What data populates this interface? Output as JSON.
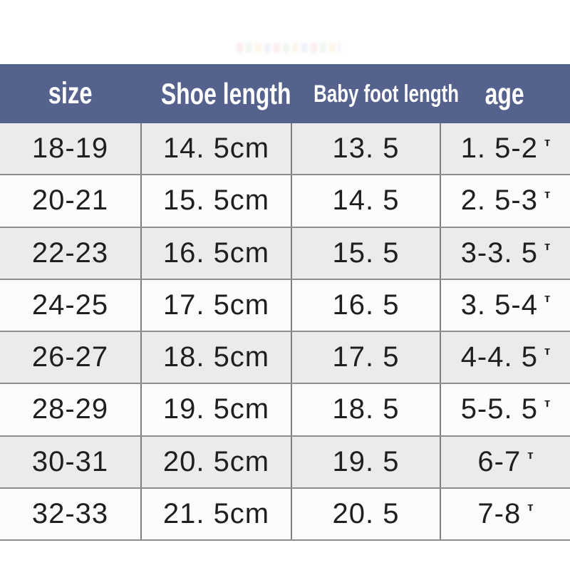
{
  "chart_data": {
    "type": "table",
    "title": "",
    "columns": [
      "size",
      "Shoe length",
      "Baby foot length",
      "age"
    ],
    "rows": [
      {
        "size": "18-19",
        "shoe_length": "14. 5cm",
        "foot_length": "13. 5",
        "age": "1. 5-2",
        "age_unit": "т"
      },
      {
        "size": "20-21",
        "shoe_length": "15. 5cm",
        "foot_length": "14. 5",
        "age": "2. 5-3",
        "age_unit": "т"
      },
      {
        "size": "22-23",
        "shoe_length": "16. 5cm",
        "foot_length": "15. 5",
        "age": "3-3. 5",
        "age_unit": "т"
      },
      {
        "size": "24-25",
        "shoe_length": "17. 5cm",
        "foot_length": "16. 5",
        "age": "3. 5-4",
        "age_unit": "т"
      },
      {
        "size": "26-27",
        "shoe_length": "18. 5cm",
        "foot_length": "17. 5",
        "age": "4-4. 5",
        "age_unit": "т"
      },
      {
        "size": "28-29",
        "shoe_length": "19. 5cm",
        "foot_length": "18. 5",
        "age": "5-5. 5",
        "age_unit": "т"
      },
      {
        "size": "30-31",
        "shoe_length": "20. 5cm",
        "foot_length": "19. 5",
        "age": "6-7",
        "age_unit": "т"
      },
      {
        "size": "32-33",
        "shoe_length": "21. 5cm",
        "foot_length": "20. 5",
        "age": "7-8",
        "age_unit": "т"
      }
    ],
    "layout": {
      "grid": "on",
      "stripes": "alternating gray/white starting gray",
      "header_position": "top"
    }
  },
  "style": {
    "header_bg": "#55628e",
    "header_text": "#ffffff",
    "row_gray": "#ebebeb",
    "row_white": "#fcfcfc",
    "h_border": "#8e8e8e",
    "v_divider": "#7f7f7f",
    "cell_text": "#1f1f1f"
  }
}
